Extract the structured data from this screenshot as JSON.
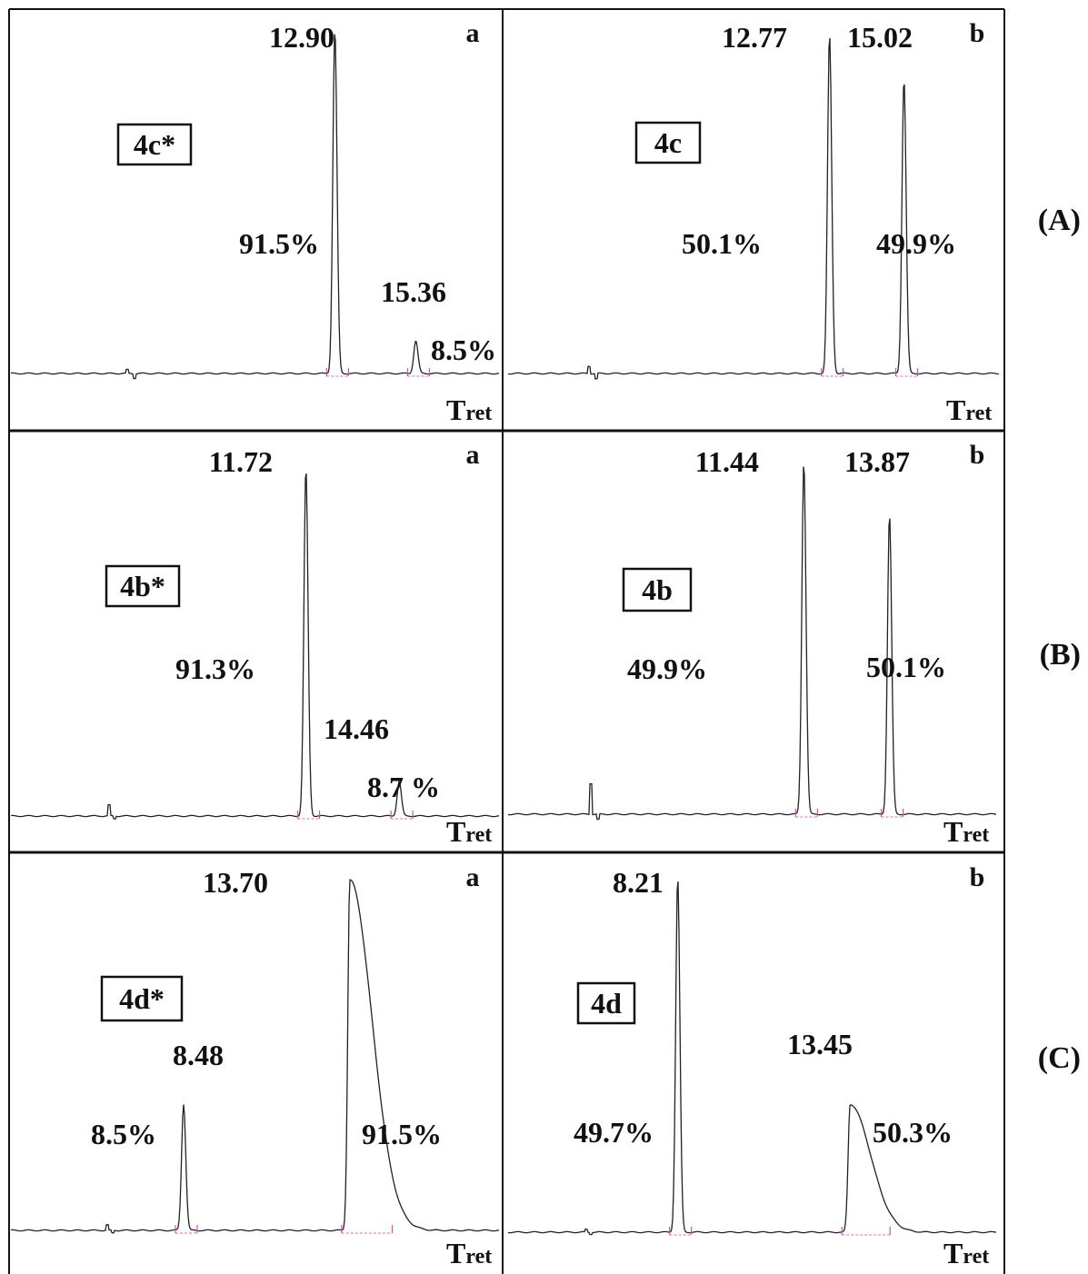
{
  "chart_data": [
    {
      "type": "line",
      "panel": "a",
      "row": "(A)",
      "sample": "4c*",
      "axis_label": "Tret",
      "peaks": [
        {
          "retention_time": "12.90",
          "area_percent": "91.5%",
          "t": 12.9,
          "height": 1.0
        },
        {
          "retention_time": "15.36",
          "area_percent": "8.5%",
          "t": 15.36,
          "height": 0.095
        }
      ]
    },
    {
      "type": "line",
      "panel": "b",
      "row": "(A)",
      "sample": "4c",
      "axis_label": "Tret",
      "peaks": [
        {
          "retention_time": "12.77",
          "area_percent": "50.1%",
          "t": 12.77,
          "height": 1.0
        },
        {
          "retention_time": "15.02",
          "area_percent": "49.9%",
          "t": 15.02,
          "height": 0.87
        }
      ]
    },
    {
      "type": "line",
      "panel": "a",
      "row": "(B)",
      "sample": "4b*",
      "axis_label": "Tret",
      "peaks": [
        {
          "retention_time": "11.72",
          "area_percent": "91.3%",
          "t": 11.72,
          "height": 1.0
        },
        {
          "retention_time": "14.46",
          "area_percent": "8.7 %",
          "t": 14.46,
          "height": 0.1
        }
      ]
    },
    {
      "type": "line",
      "panel": "b",
      "row": "(B)",
      "sample": "4b",
      "axis_label": "Tret",
      "peaks": [
        {
          "retention_time": "11.44",
          "area_percent": "49.9%",
          "t": 11.44,
          "height": 1.0
        },
        {
          "retention_time": "13.87",
          "area_percent": "50.1%",
          "t": 13.87,
          "height": 0.85
        }
      ]
    },
    {
      "type": "line",
      "panel": "a",
      "row": "(C)",
      "sample": "4d*",
      "axis_label": "Tret",
      "peaks": [
        {
          "retention_time": "8.48",
          "area_percent": "8.5%",
          "t": 8.48,
          "height": 0.36
        },
        {
          "retention_time": "13.70",
          "area_percent": "91.5%",
          "t": 13.7,
          "height": 1.0
        }
      ]
    },
    {
      "type": "line",
      "panel": "b",
      "row": "(C)",
      "sample": "4d",
      "axis_label": "Tret",
      "peaks": [
        {
          "retention_time": "8.21",
          "area_percent": "49.7%",
          "t": 8.21,
          "height": 1.0
        },
        {
          "retention_time": "13.45",
          "area_percent": "50.3%",
          "t": 13.45,
          "height": 0.36
        }
      ]
    }
  ],
  "row_labels": [
    "(A)",
    "(B)",
    "(C)"
  ]
}
